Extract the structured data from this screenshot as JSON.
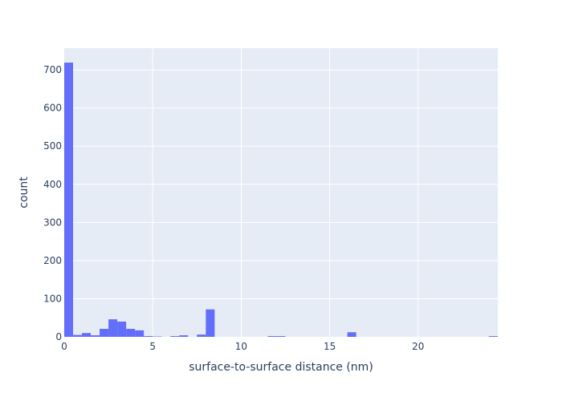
{
  "chart_data": {
    "type": "bar",
    "subtype": "histogram",
    "title": "",
    "xlabel": "surface-to-surface distance (nm)",
    "ylabel": "count",
    "xlim": [
      0,
      24.5
    ],
    "ylim": [
      0,
      757
    ],
    "bin_width": 0.5,
    "grid": true,
    "x_ticks": [
      0,
      5,
      10,
      15,
      20
    ],
    "y_ticks": [
      0,
      100,
      200,
      300,
      400,
      500,
      600,
      700
    ],
    "colors": {
      "bar": "#636efa",
      "plot_background": "#e5ecf6",
      "grid": "#ffffff",
      "text": "#2a3f5f"
    },
    "series": [
      {
        "bin_starts": [
          0,
          0.5,
          1,
          1.5,
          2,
          2.5,
          3,
          3.5,
          4,
          4.5,
          5,
          6,
          6.5,
          7.5,
          8,
          11.5,
          12,
          16,
          24
        ],
        "values": [
          719,
          5,
          10,
          4,
          21,
          46,
          40,
          21,
          17,
          2,
          1,
          2,
          4,
          6,
          72,
          2,
          2,
          12,
          2
        ]
      }
    ]
  }
}
